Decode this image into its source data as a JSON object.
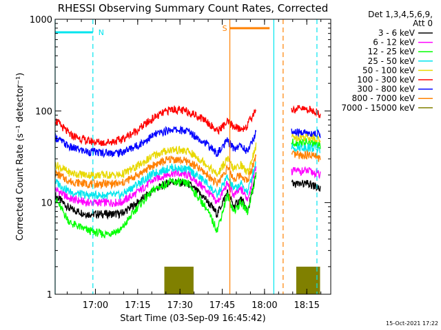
{
  "chart_data": {
    "type": "line",
    "title": "RHESSI Observing Summary Count Rates, Corrected",
    "xlabel": "Start Time (03-Sep-09 16:45:42)",
    "ylabel": "Corrected Count Rate (s⁻¹ detector⁻¹)",
    "yscale": "log",
    "ylim": [
      1,
      1000
    ],
    "xlim": [
      16.7617,
      18.3917
    ],
    "x_ticks": [
      {
        "x": 17.0,
        "label": "17:00"
      },
      {
        "x": 17.25,
        "label": "17:15"
      },
      {
        "x": 17.5,
        "label": "17:30"
      },
      {
        "x": 17.75,
        "label": "17:45"
      },
      {
        "x": 18.0,
        "label": "18:00"
      },
      {
        "x": 18.25,
        "label": "18:15"
      }
    ],
    "y_ticks": [
      {
        "y": 1,
        "label": "1"
      },
      {
        "y": 10,
        "label": "10"
      },
      {
        "y": 100,
        "label": "100"
      },
      {
        "y": 1000,
        "label": "1000"
      }
    ],
    "legend": {
      "position": "right",
      "header": [
        "Det 1,3,4,5,6,9,",
        "Att 0"
      ]
    },
    "annotations": [
      {
        "label": "N",
        "x_start": 16.7617,
        "x_end": 16.985,
        "color": "#00e5ee"
      },
      {
        "label": "S",
        "x_start": 17.795,
        "x_end": 18.03,
        "color": "#ff8000"
      }
    ],
    "markers": [
      {
        "x": 16.7617,
        "style": "solid",
        "color": "#00e5ee"
      },
      {
        "x": 16.985,
        "style": "dashed",
        "color": "#00e5ee"
      },
      {
        "x": 17.795,
        "style": "solid",
        "color": "#ff8000"
      },
      {
        "x": 18.055,
        "style": "solid",
        "color": "#00e5ee"
      },
      {
        "x": 18.11,
        "style": "dashed",
        "color": "#ff8000"
      },
      {
        "x": 18.31,
        "style": "dashed",
        "color": "#00e5ee"
      }
    ],
    "series": [
      {
        "name": "3 - 6 keV",
        "color": "#000000",
        "x": [
          16.762,
          16.85,
          16.95,
          17.05,
          17.15,
          17.25,
          17.35,
          17.45,
          17.55,
          17.65,
          17.72,
          17.78,
          17.82,
          17.86,
          17.9,
          17.95
        ],
        "y": [
          12,
          8.5,
          7.5,
          7.5,
          7.5,
          10,
          14,
          17,
          16,
          11,
          7.5,
          13,
          9,
          11,
          8,
          20
        ],
        "x2": [
          18.16,
          18.2,
          18.25,
          18.3,
          18.33
        ],
        "y2": [
          16,
          16,
          16,
          15,
          14
        ]
      },
      {
        "name": "6 - 12 keV",
        "color": "#ff00ff",
        "x": [
          16.762,
          16.85,
          16.95,
          17.05,
          17.15,
          17.25,
          17.35,
          17.45,
          17.55,
          17.65,
          17.72,
          17.78,
          17.82,
          17.86,
          17.9,
          17.95
        ],
        "y": [
          14,
          11,
          10,
          10,
          10,
          13,
          18,
          21,
          20,
          14,
          10,
          16,
          12,
          14,
          11,
          25
        ],
        "x2": [
          18.16,
          18.2,
          18.25,
          18.3,
          18.33
        ],
        "y2": [
          22,
          22,
          22,
          21,
          20
        ]
      },
      {
        "name": "12 - 25 keV",
        "color": "#00ff00",
        "x": [
          16.762,
          16.85,
          16.95,
          17.05,
          17.15,
          17.25,
          17.35,
          17.45,
          17.55,
          17.65,
          17.72,
          17.78,
          17.82,
          17.86,
          17.9,
          17.95
        ],
        "y": [
          11,
          6,
          5,
          4.5,
          5,
          9,
          14,
          17,
          16,
          9,
          5,
          12,
          8,
          10,
          8,
          20
        ],
        "x2": [
          18.16,
          18.2,
          18.25,
          18.3,
          18.33
        ],
        "y2": [
          45,
          45,
          45,
          44,
          40
        ]
      },
      {
        "name": "25 - 50 keV",
        "color": "#00e5ee",
        "x": [
          16.762,
          16.85,
          16.95,
          17.05,
          17.15,
          17.25,
          17.35,
          17.45,
          17.55,
          17.65,
          17.72,
          17.78,
          17.82,
          17.86,
          17.9,
          17.95
        ],
        "y": [
          17,
          13,
          12,
          12,
          12,
          16,
          21,
          24,
          23,
          17,
          12,
          19,
          14,
          16,
          13,
          28
        ],
        "x2": [
          18.16,
          18.2,
          18.25,
          18.3,
          18.33
        ],
        "y2": [
          40,
          40,
          40,
          39,
          37
        ]
      },
      {
        "name": "50 - 100 keV",
        "color": "#e8d800",
        "x": [
          16.762,
          16.85,
          16.95,
          17.05,
          17.15,
          17.25,
          17.35,
          17.45,
          17.55,
          17.65,
          17.72,
          17.78,
          17.82,
          17.86,
          17.9,
          17.95
        ],
        "y": [
          26,
          21,
          20,
          20,
          20,
          25,
          33,
          38,
          36,
          27,
          20,
          30,
          23,
          26,
          21,
          42
        ],
        "x2": [
          18.16,
          18.2,
          18.25,
          18.3,
          18.33
        ],
        "y2": [
          52,
          52,
          52,
          51,
          48
        ]
      },
      {
        "name": "100 - 300 keV",
        "color": "#ff0000",
        "x": [
          16.762,
          16.85,
          16.95,
          17.05,
          17.15,
          17.25,
          17.35,
          17.45,
          17.55,
          17.65,
          17.72,
          17.78,
          17.82,
          17.86,
          17.9,
          17.95
        ],
        "y": [
          80,
          55,
          47,
          45,
          48,
          62,
          85,
          105,
          98,
          80,
          60,
          75,
          68,
          62,
          70,
          105
        ],
        "x2": [
          18.16,
          18.2,
          18.25,
          18.3,
          18.33
        ],
        "y2": [
          105,
          105,
          104,
          100,
          90
        ]
      },
      {
        "name": "300 - 800 keV",
        "color": "#0000ff",
        "x": [
          16.762,
          16.85,
          16.95,
          17.05,
          17.15,
          17.25,
          17.35,
          17.45,
          17.55,
          17.65,
          17.72,
          17.78,
          17.82,
          17.86,
          17.9,
          17.95
        ],
        "y": [
          52,
          40,
          36,
          35,
          35,
          42,
          55,
          63,
          60,
          45,
          34,
          47,
          39,
          42,
          36,
          58
        ],
        "x2": [
          18.16,
          18.2,
          18.25,
          18.3,
          18.33
        ],
        "y2": [
          58,
          58,
          58,
          57,
          55
        ]
      },
      {
        "name": "800 - 7000 keV",
        "color": "#ff8000",
        "x": [
          16.762,
          16.85,
          16.95,
          17.05,
          17.15,
          17.25,
          17.35,
          17.45,
          17.55,
          17.65,
          17.72,
          17.78,
          17.82,
          17.86,
          17.9,
          17.95
        ],
        "y": [
          21,
          17,
          16,
          16,
          16,
          20,
          26,
          30,
          28,
          21,
          16,
          24,
          18,
          20,
          17,
          33
        ],
        "x2": [
          18.16,
          18.2,
          18.25,
          18.3,
          18.33
        ],
        "y2": [
          33,
          33,
          33,
          32,
          30
        ]
      },
      {
        "name": "7000 - 15000 keV",
        "color": "#808000",
        "x": [],
        "y": [],
        "bursts": [
          [
            17.41,
            17.58
          ],
          [
            18.19,
            18.33
          ]
        ],
        "burst_range": [
          1,
          2
        ]
      }
    ]
  },
  "timestamp": "15-Oct-2021 17:22"
}
